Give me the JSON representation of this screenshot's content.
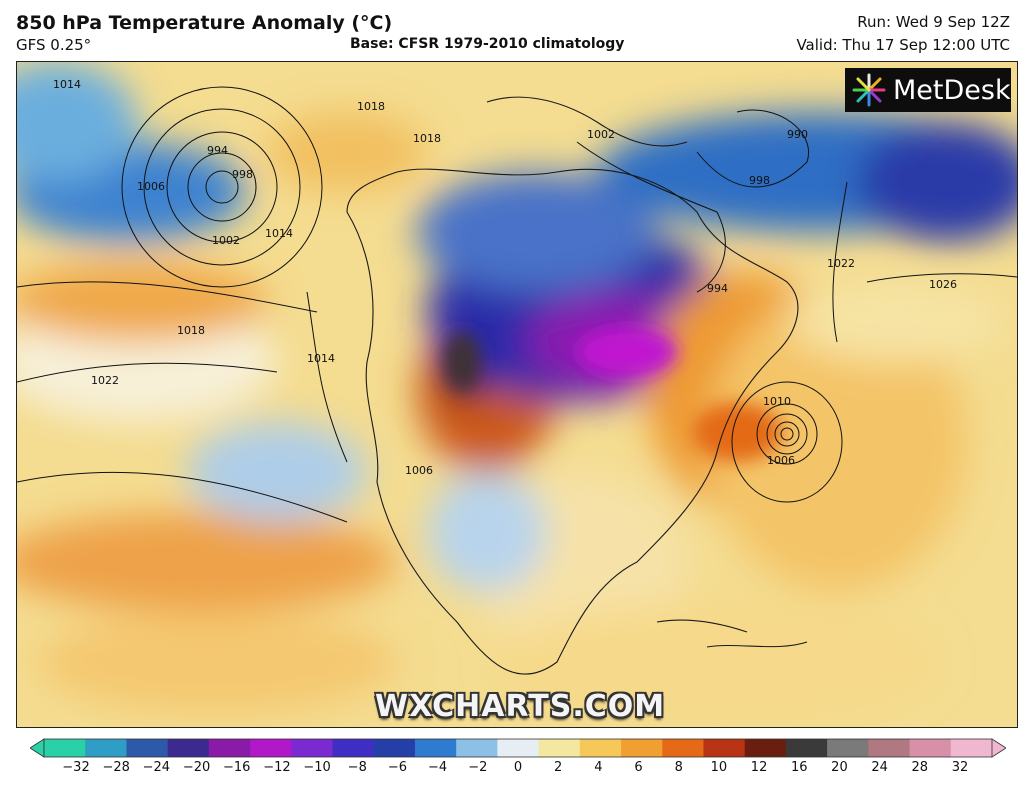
{
  "header": {
    "title": "850 hPa Temperature Anomaly (°C)",
    "model": "GFS 0.25°",
    "base": "Base: CFSR 1979-2010 climatology",
    "run": "Run: Wed 9 Sep 12Z",
    "valid": "Valid: Thu 17 Sep 12:00 UTC"
  },
  "logo": {
    "text": "MetDesk"
  },
  "watermark": "WXCHARTS.COM",
  "isobars": [
    {
      "label": "1014"
    },
    {
      "label": "1018"
    },
    {
      "label": "994"
    },
    {
      "label": "998"
    },
    {
      "label": "1006"
    },
    {
      "label": "1002"
    },
    {
      "label": "1014"
    },
    {
      "label": "1018"
    },
    {
      "label": "1014"
    },
    {
      "label": "1022"
    },
    {
      "label": "1002"
    },
    {
      "label": "990"
    },
    {
      "label": "998"
    },
    {
      "label": "994"
    },
    {
      "label": "1018"
    },
    {
      "label": "1022"
    },
    {
      "label": "1026"
    },
    {
      "label": "1010"
    },
    {
      "label": "1006"
    },
    {
      "label": "1006"
    }
  ],
  "legend": {
    "ticks": [
      "−32",
      "−28",
      "−24",
      "−20",
      "−16",
      "−12",
      "−10",
      "−8",
      "−6",
      "−4",
      "−2",
      "0",
      "2",
      "4",
      "6",
      "8",
      "10",
      "12",
      "16",
      "20",
      "24",
      "28",
      "32"
    ],
    "colors": [
      "#2ad0a6",
      "#2e9ec6",
      "#2c5aa8",
      "#3d2a8e",
      "#8a1aa8",
      "#b018c8",
      "#7a2ad0",
      "#3f2ec4",
      "#2440a8",
      "#2e7cd0",
      "#8cc0e6",
      "#e6eef4",
      "#f4e8a0",
      "#f6c85a",
      "#f0a030",
      "#e46a18",
      "#b83414",
      "#6a1e10",
      "#3a3a3a",
      "#7a7a7a",
      "#b07880",
      "#d890a8",
      "#f0b8d0"
    ]
  }
}
